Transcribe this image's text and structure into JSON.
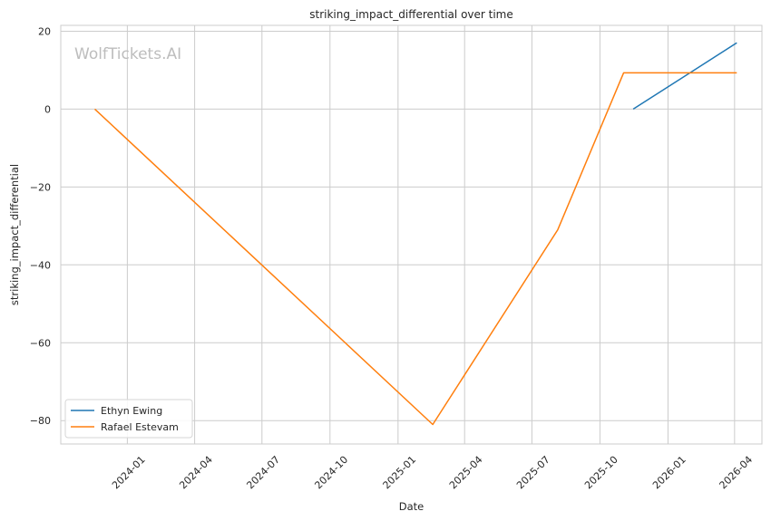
{
  "watermark": "WolfTickets.AI",
  "chart_data": {
    "type": "line",
    "title": "striking_impact_differential over time",
    "xlabel": "Date",
    "ylabel": "striking_impact_differential",
    "x_ticks": [
      "2024-01",
      "2024-04",
      "2024-07",
      "2024-10",
      "2025-01",
      "2025-04",
      "2025-07",
      "2025-10",
      "2026-01",
      "2026-04"
    ],
    "y_ticks": [
      20,
      0,
      -20,
      -40,
      -60,
      -80
    ],
    "xlim": [
      "2023-10-03",
      "2026-05-08"
    ],
    "ylim": [
      -86,
      21.5
    ],
    "grid": true,
    "legend": "lower-left",
    "series": [
      {
        "name": "Ethyn Ewing",
        "color": "#1f77b4",
        "points": [
          {
            "x": "2025-11-15",
            "y": 0
          },
          {
            "x": "2026-04-04",
            "y": 17
          }
        ]
      },
      {
        "name": "Rafael Estevam",
        "color": "#ff7f0e",
        "points": [
          {
            "x": "2023-11-18",
            "y": 0
          },
          {
            "x": "2025-02-17",
            "y": -81
          },
          {
            "x": "2025-08-05",
            "y": -31
          },
          {
            "x": "2025-11-02",
            "y": 9.3
          },
          {
            "x": "2026-04-04",
            "y": 9.3
          }
        ]
      }
    ]
  }
}
